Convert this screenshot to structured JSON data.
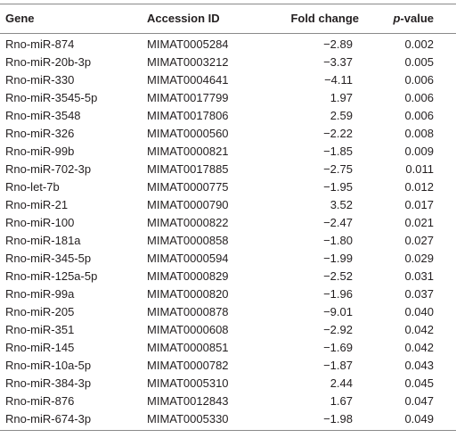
{
  "table": {
    "headers": [
      "Gene",
      "Accession ID",
      "Fold change",
      "p-value"
    ],
    "rows": [
      [
        "Rno-miR-874",
        "MIMAT0005284",
        "−2.89",
        "0.002"
      ],
      [
        "Rno-miR-20b-3p",
        "MIMAT0003212",
        "−3.37",
        "0.005"
      ],
      [
        "Rno-miR-330",
        "MIMAT0004641",
        "−4.11",
        "0.006"
      ],
      [
        "Rno-miR-3545-5p",
        "MIMAT0017799",
        "1.97",
        "0.006"
      ],
      [
        "Rno-miR-3548",
        "MIMAT0017806",
        "2.59",
        "0.006"
      ],
      [
        "Rno-miR-326",
        "MIMAT0000560",
        "−2.22",
        "0.008"
      ],
      [
        "Rno-miR-99b",
        "MIMAT0000821",
        "−1.85",
        "0.009"
      ],
      [
        "Rno-miR-702-3p",
        "MIMAT0017885",
        "−2.75",
        "0.011"
      ],
      [
        "Rno-let-7b",
        "MIMAT0000775",
        "−1.95",
        "0.012"
      ],
      [
        "Rno-miR-21",
        "MIMAT0000790",
        "3.52",
        "0.017"
      ],
      [
        "Rno-miR-100",
        "MIMAT0000822",
        "−2.47",
        "0.021"
      ],
      [
        "Rno-miR-181a",
        "MIMAT0000858",
        "−1.80",
        "0.027"
      ],
      [
        "Rno-miR-345-5p",
        "MIMAT0000594",
        "−1.99",
        "0.029"
      ],
      [
        "Rno-miR-125a-5p",
        "MIMAT0000829",
        "−2.52",
        "0.031"
      ],
      [
        "Rno-miR-99a",
        "MIMAT0000820",
        "−1.96",
        "0.037"
      ],
      [
        "Rno-miR-205",
        "MIMAT0000878",
        "−9.01",
        "0.040"
      ],
      [
        "Rno-miR-351",
        "MIMAT0000608",
        "−2.92",
        "0.042"
      ],
      [
        "Rno-miR-145",
        "MIMAT0000851",
        "−1.69",
        "0.042"
      ],
      [
        "Rno-miR-10a-5p",
        "MIMAT0000782",
        "−1.87",
        "0.043"
      ],
      [
        "Rno-miR-384-3p",
        "MIMAT0005310",
        "2.44",
        "0.045"
      ],
      [
        "Rno-miR-876",
        "MIMAT0012843",
        "1.67",
        "0.047"
      ],
      [
        "Rno-miR-674-3p",
        "MIMAT0005330",
        "−1.98",
        "0.049"
      ]
    ]
  }
}
